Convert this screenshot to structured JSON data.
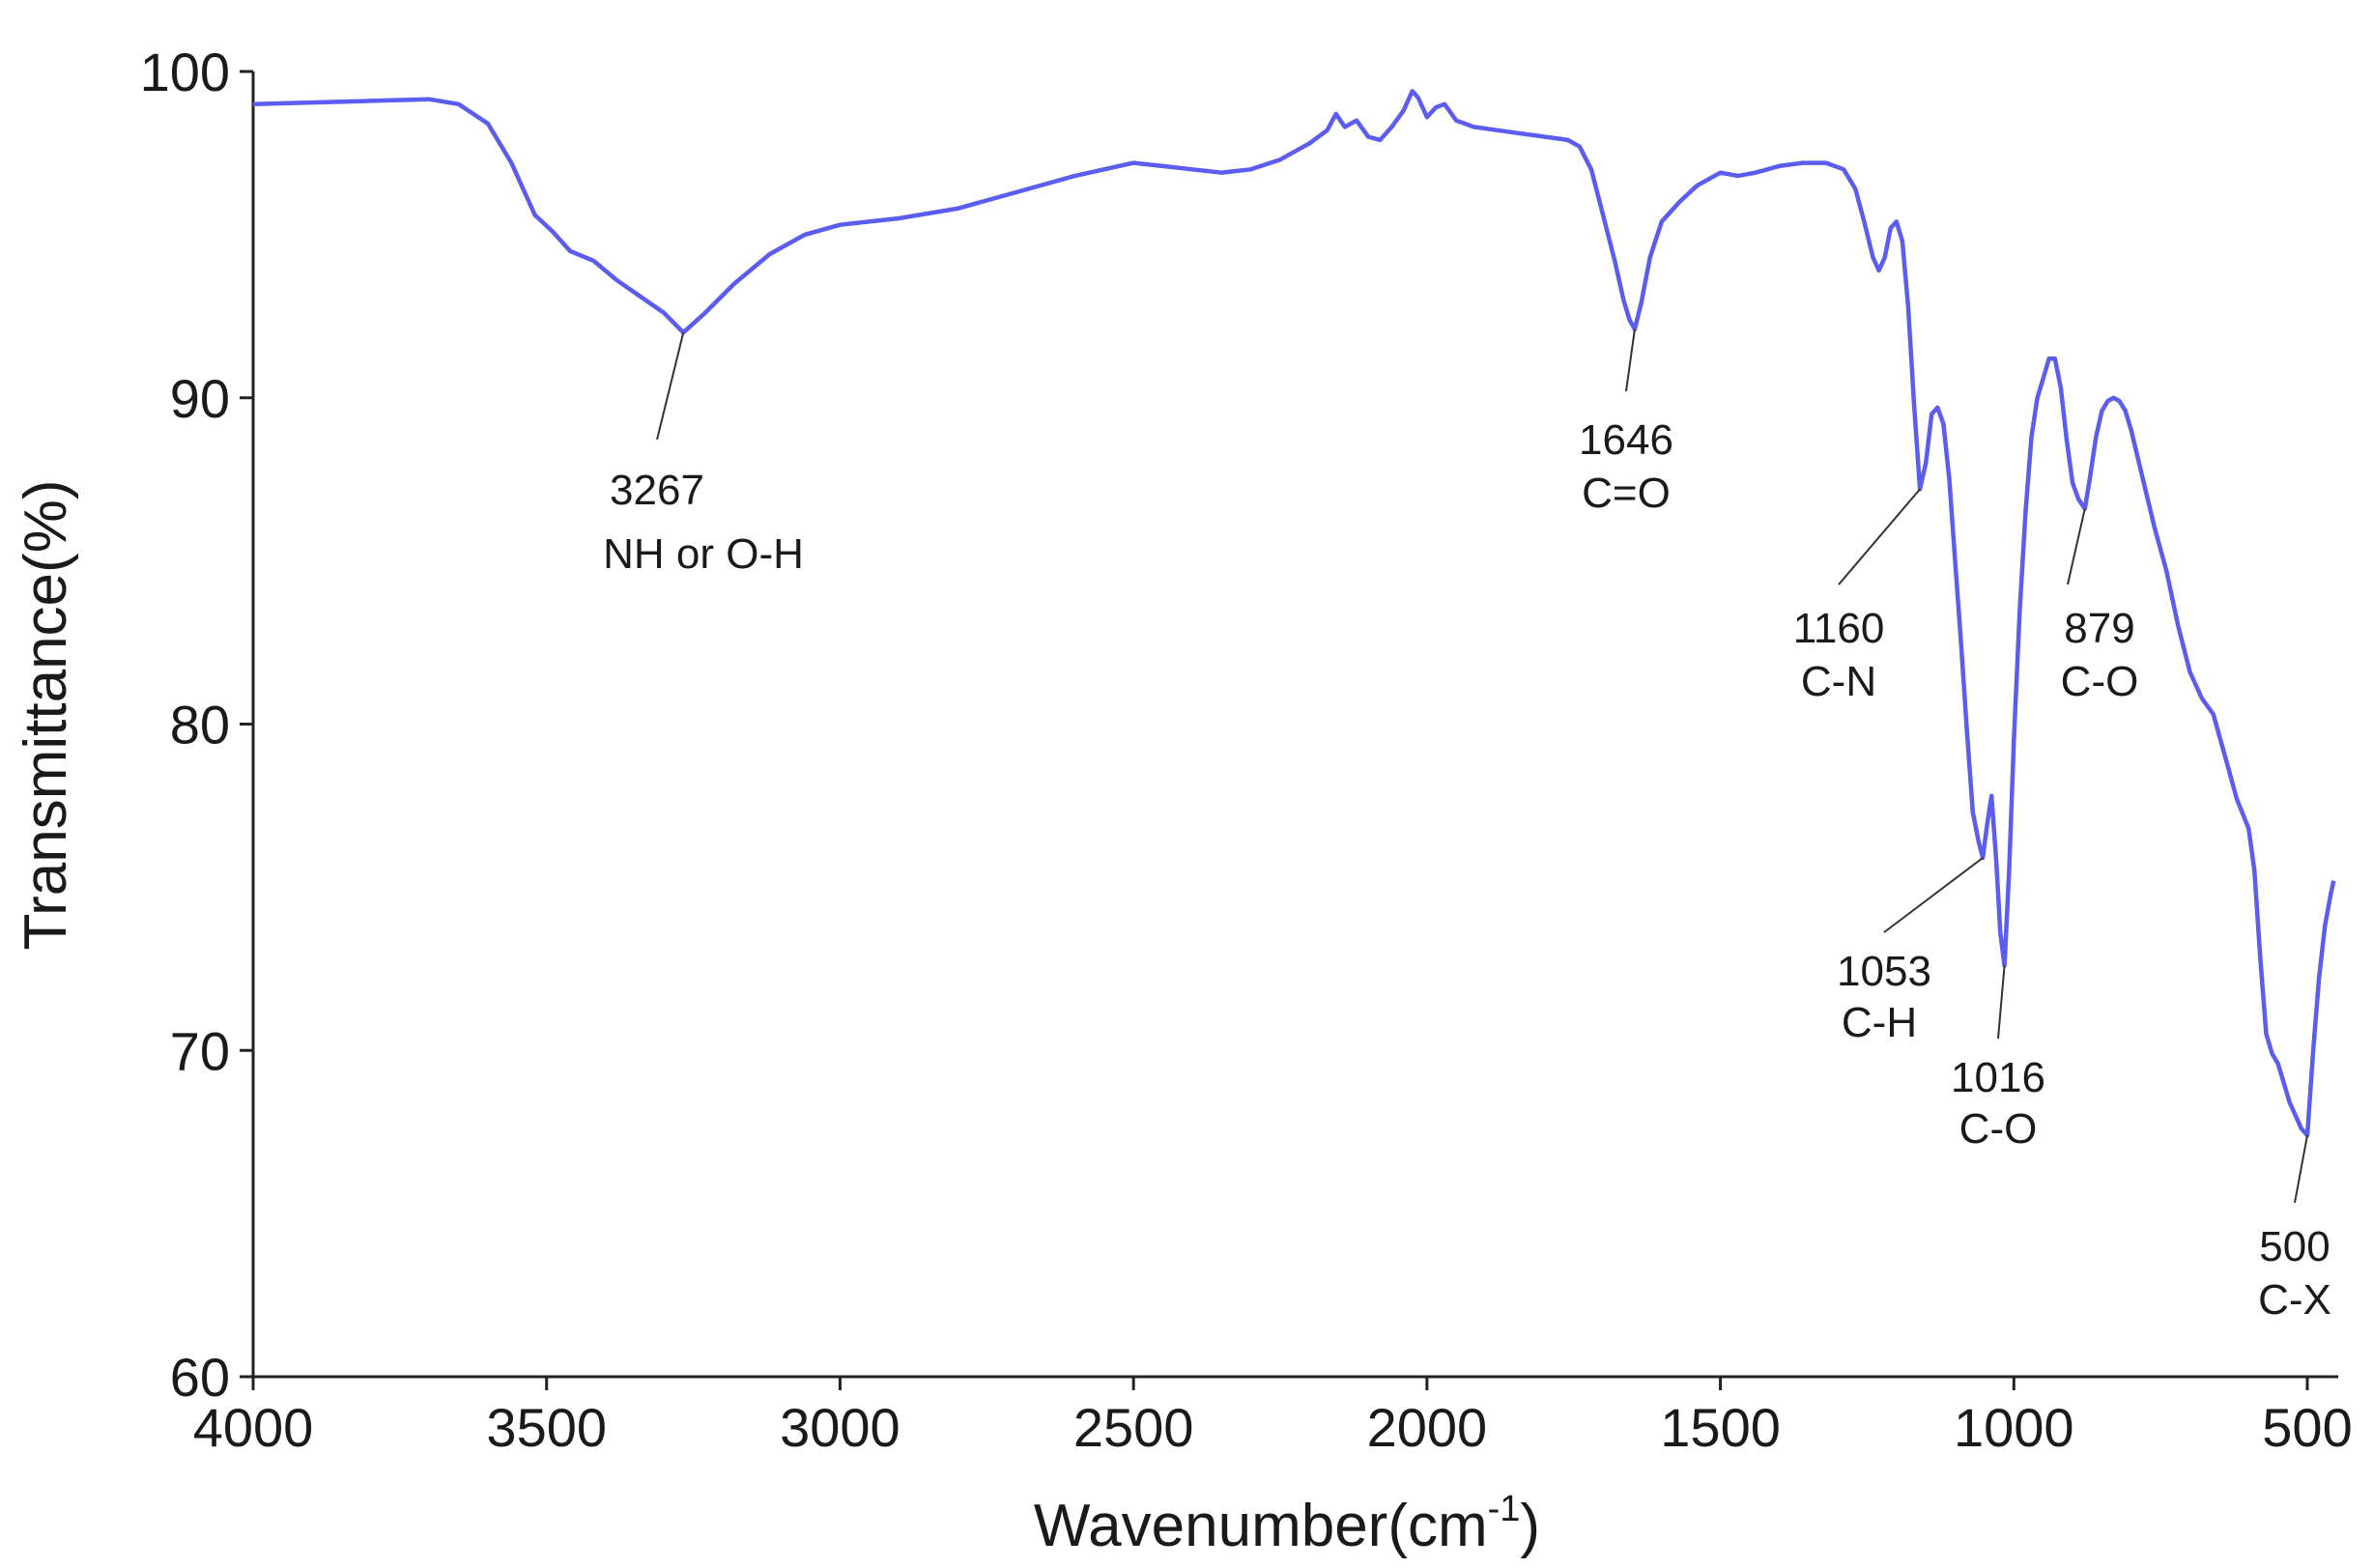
{
  "chart_data": {
    "type": "line",
    "xlabel": "Wavenumber(cm",
    "xlabel_sup": "-1",
    "xlabel_end": ")",
    "ylabel": "Transmittance(%)",
    "xlim": [
      4000,
      450
    ],
    "ylim": [
      60,
      100
    ],
    "x_reversed": true,
    "xticks": [
      4000,
      3500,
      3000,
      2500,
      2000,
      1500,
      1000,
      500
    ],
    "yticks": [
      60,
      70,
      80,
      90,
      100
    ],
    "grid": false,
    "line_color": "#5b5cf0",
    "series": [
      {
        "x": [
          4000,
          3900,
          3800,
          3700,
          3650,
          3600,
          3560,
          3520,
          3490,
          3460,
          3420,
          3380,
          3340,
          3300,
          3267,
          3230,
          3180,
          3120,
          3060,
          3000,
          2900,
          2800,
          2700,
          2600,
          2550,
          2500,
          2450,
          2400,
          2350,
          2300,
          2250,
          2200,
          2170,
          2155,
          2140,
          2120,
          2100,
          2080,
          2060,
          2040,
          2025,
          2015,
          2000,
          1985,
          1970,
          1950,
          1920,
          1880,
          1840,
          1800,
          1760,
          1740,
          1720,
          1700,
          1680,
          1665,
          1655,
          1646,
          1635,
          1620,
          1600,
          1570,
          1540,
          1500,
          1470,
          1440,
          1400,
          1360,
          1320,
          1290,
          1270,
          1255,
          1240,
          1230,
          1220,
          1210,
          1200,
          1190,
          1180,
          1170,
          1160,
          1150,
          1140,
          1130,
          1120,
          1110,
          1100,
          1090,
          1080,
          1070,
          1060,
          1053,
          1045,
          1038,
          1030,
          1023,
          1016,
          1008,
          1000,
          990,
          980,
          970,
          960,
          950,
          940,
          930,
          920,
          910,
          900,
          890,
          879,
          870,
          860,
          850,
          840,
          830,
          820,
          810,
          800,
          780,
          760,
          740,
          720,
          700,
          680,
          660,
          640,
          620,
          600,
          590,
          580,
          570,
          560,
          550,
          540,
          530,
          520,
          510,
          500,
          490,
          480,
          470,
          460,
          455
        ],
        "y": [
          99.0,
          99.05,
          99.1,
          99.15,
          99.0,
          98.4,
          97.2,
          95.6,
          95.1,
          94.5,
          94.2,
          93.6,
          93.1,
          92.6,
          92.0,
          92.6,
          93.5,
          94.4,
          95.0,
          95.3,
          95.5,
          95.8,
          96.3,
          96.8,
          97.0,
          97.2,
          97.1,
          97.0,
          96.9,
          97.0,
          97.3,
          97.8,
          98.2,
          98.7,
          98.3,
          98.5,
          98.0,
          97.9,
          98.3,
          98.8,
          99.4,
          99.2,
          98.6,
          98.9,
          99.0,
          98.5,
          98.3,
          98.2,
          98.1,
          98.0,
          97.9,
          97.7,
          97.0,
          95.6,
          94.2,
          93.0,
          92.4,
          92.1,
          92.9,
          94.3,
          95.4,
          96.0,
          96.5,
          96.9,
          96.8,
          96.9,
          97.1,
          97.2,
          97.2,
          97.0,
          96.4,
          95.4,
          94.3,
          93.9,
          94.3,
          95.2,
          95.4,
          94.8,
          92.8,
          89.8,
          87.2,
          88.0,
          89.5,
          89.7,
          89.2,
          87.5,
          85.0,
          82.5,
          79.8,
          77.3,
          76.4,
          75.9,
          77.0,
          77.8,
          75.8,
          73.6,
          72.6,
          75.5,
          79.5,
          83.5,
          86.5,
          88.8,
          90.0,
          90.6,
          91.2,
          91.2,
          90.3,
          88.7,
          87.4,
          86.9,
          86.6,
          87.6,
          88.8,
          89.6,
          89.9,
          90.0,
          89.9,
          89.6,
          89.0,
          87.5,
          86.0,
          84.7,
          83.0,
          81.6,
          80.8,
          80.3,
          79.0,
          77.7,
          76.8,
          75.5,
          72.8,
          70.5,
          69.9,
          69.6,
          69.0,
          68.4,
          68.0,
          67.6,
          67.4,
          70.0,
          72.2,
          73.8,
          74.8,
          75.2
        ]
      }
    ],
    "annotations": [
      {
        "value": "3267",
        "label": "NH or O-H",
        "x": 3267,
        "y": 92.0
      },
      {
        "value": "1646",
        "label": "C=O",
        "x": 1646,
        "y": 92.1
      },
      {
        "value": "1160",
        "label": "C-N",
        "x": 1160,
        "y": 87.2
      },
      {
        "value": "879",
        "label": "C-O",
        "x": 879,
        "y": 86.6
      },
      {
        "value": "1053",
        "label": "C-H",
        "x": 1053,
        "y": 75.9
      },
      {
        "value": "1016",
        "label": "C-O",
        "x": 1016,
        "y": 72.6
      },
      {
        "value": "500",
        "label": "C-X",
        "x": 500,
        "y": 67.4
      }
    ]
  }
}
